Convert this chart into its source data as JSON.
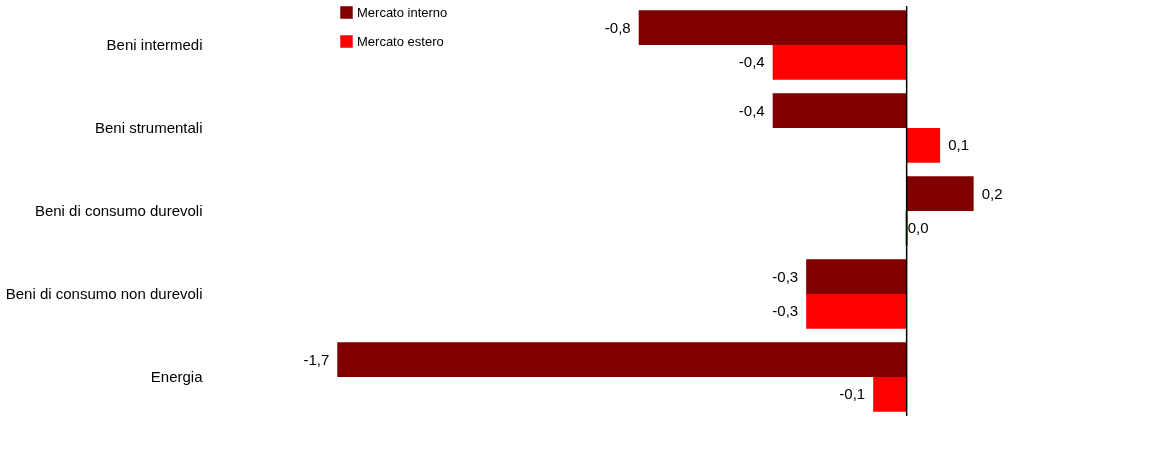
{
  "chart_data": {
    "type": "bar",
    "orientation": "horizontal",
    "categories": [
      "Beni intermedi",
      "Beni strumentali",
      "Beni di consumo durevoli",
      "Beni di consumo non durevoli",
      "Energia"
    ],
    "series": [
      {
        "name": "Mercato interno",
        "color": "#800000",
        "values": [
          -0.8,
          -0.4,
          0.2,
          -0.3,
          -1.7
        ],
        "value_labels": [
          "-0,8",
          "-0,4",
          "0,2",
          "-0,3",
          "-1,7"
        ]
      },
      {
        "name": "Mercato estero",
        "color": "#ff0000",
        "values": [
          -0.4,
          0.1,
          0.0,
          -0.3,
          -0.1
        ],
        "value_labels": [
          "-0,4",
          "0,1",
          "0,0",
          "-0,3",
          "-0,1"
        ]
      }
    ],
    "legend": "top",
    "grid": false
  }
}
